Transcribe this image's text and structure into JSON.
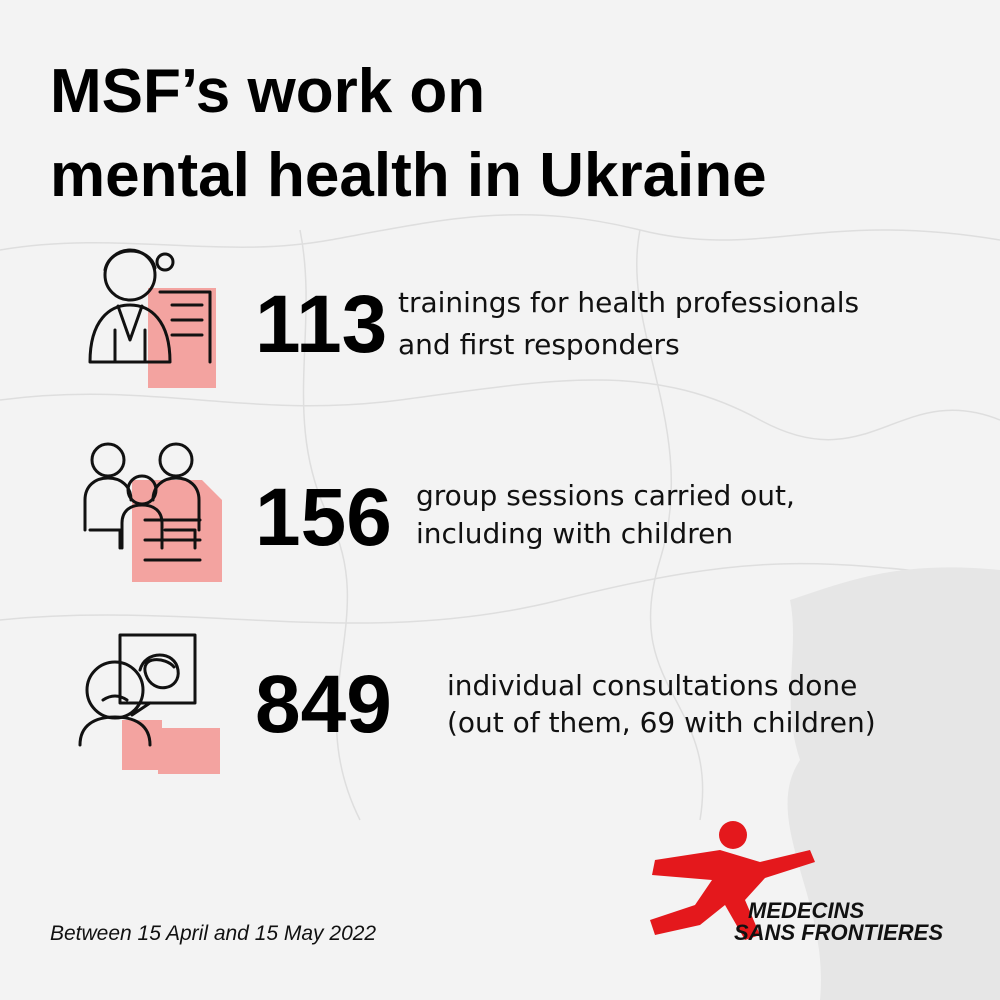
{
  "title_lines": [
    "MSF’s work on",
    "mental health in Ukraine"
  ],
  "stats": [
    {
      "value": 113,
      "lines": [
        "trainings for health professionals",
        "and first responders"
      ]
    },
    {
      "value": 156,
      "lines": [
        "group sessions carried out,",
        "including with children"
      ]
    },
    {
      "value": 849,
      "lines": [
        "individual consultations done",
        "(out of them, 69 with children)"
      ]
    }
  ],
  "footer": "Between 15 April and 15 May 2022",
  "logo_lines": [
    "MEDECINS",
    "SANS FRONTIERES"
  ]
}
